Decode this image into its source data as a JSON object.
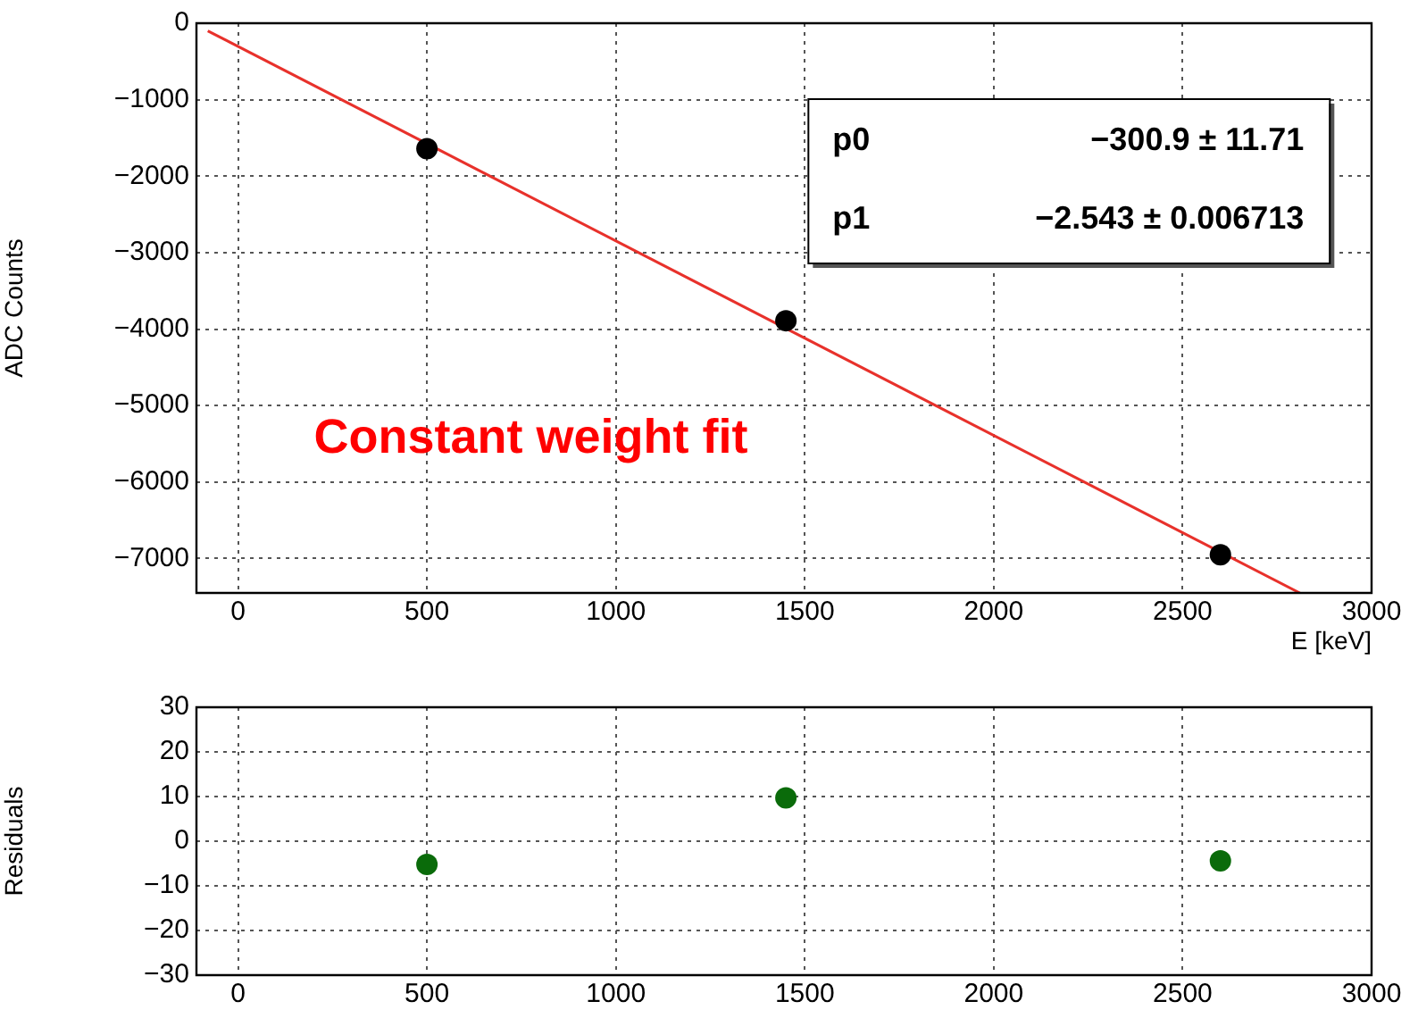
{
  "chart_data": [
    {
      "type": "scatter",
      "xlabel": "E [keV]",
      "ylabel": "ADC Counts",
      "xlim": [
        -110,
        3000
      ],
      "xticks": [
        0,
        500,
        1000,
        1500,
        2000,
        2500,
        3000
      ],
      "ylim": [
        -7450,
        0
      ],
      "yticks": [
        -7000,
        -6000,
        -5000,
        -4000,
        -3000,
        -2000,
        -1000,
        0
      ],
      "grid": true,
      "marker": "circle",
      "legend": false,
      "series": [
        {
          "type": "scatter",
          "color": "#000000",
          "x": [
            500,
            1450,
            2600
          ],
          "values": [
            -1640,
            -3890,
            -6950
          ]
        },
        {
          "type": "line",
          "color": "#e8312b",
          "marker": "none",
          "x": [
            -80,
            2810
          ],
          "values": [
            -100,
            -7450
          ]
        }
      ],
      "annotations": [
        "Constant weight fit",
        "p0",
        "−300.9 ± 11.71",
        "p1",
        "−2.543 ± 0.006713"
      ]
    },
    {
      "type": "scatter",
      "ylabel": "Residuals",
      "xlim": [
        -110,
        3000
      ],
      "xticks": [
        0,
        500,
        1000,
        1500,
        2000,
        2500,
        3000
      ],
      "ylim": [
        -30,
        30
      ],
      "yticks": [
        -30,
        -20,
        -10,
        0,
        10,
        20,
        30
      ],
      "grid": true,
      "marker": "circle",
      "legend": false,
      "series": [
        {
          "type": "scatter",
          "color": "#0a6b0a",
          "x": [
            500,
            1450,
            2600
          ],
          "values": [
            -5.2,
            9.7,
            -4.4
          ]
        }
      ]
    }
  ]
}
